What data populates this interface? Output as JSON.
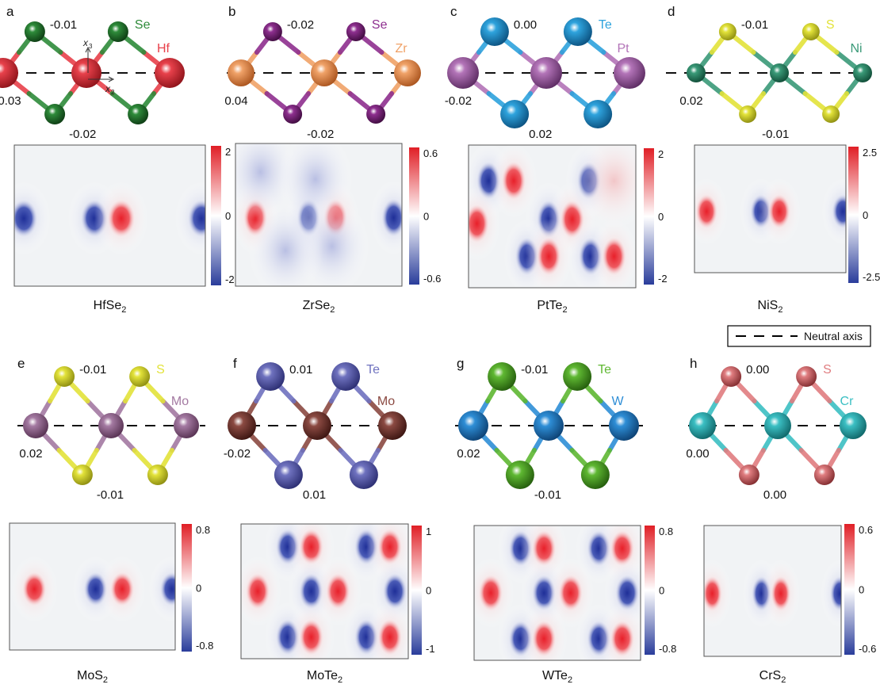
{
  "legend": {
    "label": "Neutral axis"
  },
  "panels": [
    {
      "letter": "a",
      "formula": "HfSe",
      "sub": "2",
      "metal": {
        "name": "Hf",
        "color": "#e8414b",
        "dark": "#8c1219"
      },
      "chalc": {
        "name": "Se",
        "color": "#2e8b3a",
        "dark": "#0d3a13"
      },
      "values": {
        "top": "-0.01",
        "metal": "0.03",
        "bottom": "-0.02"
      },
      "cbar": {
        "max": "2",
        "min": "-2"
      },
      "axes": true
    },
    {
      "letter": "b",
      "formula": "ZrSe",
      "sub": "2",
      "metal": {
        "name": "Zr",
        "color": "#f0a268",
        "dark": "#a8521c"
      },
      "chalc": {
        "name": "Se",
        "color": "#8e2f8f",
        "dark": "#3d0b3d"
      },
      "values": {
        "top": "-0.02",
        "metal": "0.04",
        "bottom": "-0.02"
      },
      "cbar": {
        "max": "0.6",
        "min": "-0.6"
      },
      "axes": false
    },
    {
      "letter": "c",
      "formula": "PtTe",
      "sub": "2",
      "metal": {
        "name": "Pt",
        "color": "#b374b8",
        "dark": "#5a2a60"
      },
      "chalc": {
        "name": "Te",
        "color": "#2ea3dd",
        "dark": "#0b4f7d"
      },
      "values": {
        "top": "0.00",
        "metal": "-0.02",
        "bottom": "0.02"
      },
      "cbar": {
        "max": "2",
        "min": "-2"
      },
      "axes": false
    },
    {
      "letter": "d",
      "formula": "NiS",
      "sub": "2",
      "metal": {
        "name": "Ni",
        "color": "#3a9a78",
        "dark": "#0f4a35"
      },
      "chalc": {
        "name": "S",
        "color": "#e3e33a",
        "dark": "#8a8a10"
      },
      "values": {
        "top": "-0.01",
        "metal": "0.02",
        "bottom": "-0.01"
      },
      "cbar": {
        "max": "2.5",
        "min": "-2.5"
      },
      "axes": false
    },
    {
      "letter": "e",
      "formula": "MoS",
      "sub": "2",
      "metal": {
        "name": "Mo",
        "color": "#a47aa2",
        "dark": "#553050"
      },
      "chalc": {
        "name": "S",
        "color": "#e3e33a",
        "dark": "#8a8a10"
      },
      "values": {
        "top": "-0.01",
        "metal": "0.02",
        "bottom": "-0.01"
      },
      "cbar": {
        "max": "0.8",
        "min": "-0.8"
      },
      "axes": false
    },
    {
      "letter": "f",
      "formula": "MoTe",
      "sub": "2",
      "metal": {
        "name": "Mo",
        "color": "#8b4a42",
        "dark": "#3a1410"
      },
      "chalc": {
        "name": "Te",
        "color": "#6f72bf",
        "dark": "#2a2c70"
      },
      "values": {
        "top": "0.01",
        "metal": "-0.02",
        "bottom": "0.01"
      },
      "cbar": {
        "max": "1",
        "min": "-1"
      },
      "axes": false
    },
    {
      "letter": "g",
      "formula": "WTe",
      "sub": "2",
      "metal": {
        "name": "W",
        "color": "#2e8ed6",
        "dark": "#0c3f70"
      },
      "chalc": {
        "name": "Te",
        "color": "#5fb832",
        "dark": "#235a0c"
      },
      "values": {
        "top": "-0.01",
        "metal": "0.02",
        "bottom": "-0.01"
      },
      "cbar": {
        "max": "0.8",
        "min": "-0.8"
      },
      "axes": false
    },
    {
      "letter": "h",
      "formula": "CrS",
      "sub": "2",
      "metal": {
        "name": "Cr",
        "color": "#3bbfc3",
        "dark": "#0f6466"
      },
      "chalc": {
        "name": "S",
        "color": "#e07d80",
        "dark": "#7f2a2d"
      },
      "values": {
        "top": "0.00",
        "metal": "0.00",
        "bottom": "0.00"
      },
      "cbar": {
        "max": "0.6",
        "min": "-0.6"
      },
      "axes": false
    }
  ],
  "axis_labels": {
    "x3": "x",
    "x3_sub": "3",
    "x2": "x",
    "x2_sub": "2"
  },
  "colorbar_mid": "0"
}
